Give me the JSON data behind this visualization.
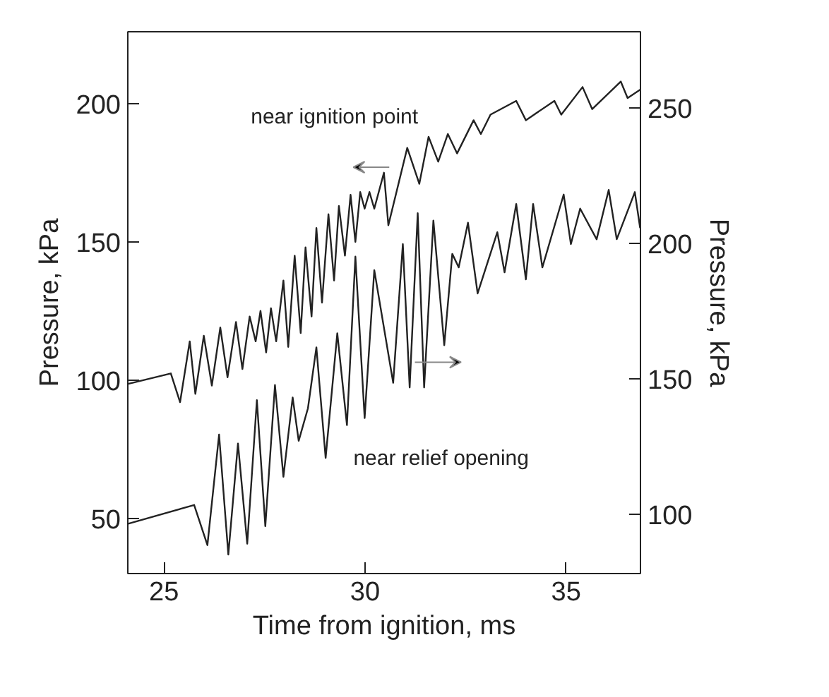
{
  "chart_data": {
    "type": "line",
    "xlabel": "Time from ignition, ms",
    "ylabel": "Pressure, kPa",
    "y2label": "Pressure, kPa",
    "xlim": [
      24.1,
      36.85
    ],
    "xticks": [
      25,
      30,
      35
    ],
    "ylim": [
      30,
      226
    ],
    "yticks": [
      50,
      100,
      150,
      200
    ],
    "y2lim": [
      78,
      278
    ],
    "y2ticks": [
      100,
      150,
      200,
      250
    ],
    "grid": false,
    "legend": false,
    "marker": "none",
    "line_style": "solid",
    "series": [
      {
        "name": "near ignition point",
        "color": "#222222",
        "x": [
          24.11,
          25.17,
          25.4,
          25.64,
          25.78,
          25.99,
          26.19,
          26.4,
          26.58,
          26.79,
          26.95,
          27.13,
          27.28,
          27.4,
          27.54,
          27.66,
          27.79,
          27.97,
          28.09,
          28.25,
          28.4,
          28.52,
          28.67,
          28.79,
          28.93,
          29.09,
          29.23,
          29.35,
          29.5,
          29.64,
          29.76,
          29.88,
          29.99,
          30.11,
          30.23,
          30.47,
          30.58,
          31.05,
          31.35,
          31.58,
          31.82,
          32.06,
          32.29,
          32.7,
          32.88,
          33.12,
          33.76,
          34.0,
          34.71,
          34.88,
          35.41,
          35.65,
          36.36,
          36.53,
          36.84
        ],
        "values": [
          98.6,
          102.4,
          92,
          114,
          95,
          116,
          98,
          119,
          101,
          121,
          104,
          123,
          114,
          125,
          110,
          126,
          114,
          136,
          112,
          145,
          117,
          148,
          123,
          155,
          128,
          160,
          136,
          163,
          145,
          167,
          150,
          168,
          162,
          168,
          162,
          175,
          156,
          184,
          171,
          188,
          179,
          189,
          182,
          194,
          189,
          196,
          201,
          194,
          201,
          196,
          206,
          198,
          208,
          202,
          205
        ]
      },
      {
        "name": "near relief opening",
        "color": "#222222",
        "axis": "y2",
        "x": [
          24.11,
          25.75,
          26.08,
          26.37,
          26.6,
          26.84,
          27.07,
          27.31,
          27.52,
          27.76,
          27.97,
          28.2,
          28.35,
          28.58,
          28.79,
          29.02,
          29.31,
          29.55,
          29.76,
          29.99,
          30.23,
          30.7,
          30.94,
          31.11,
          31.31,
          31.47,
          31.7,
          31.97,
          32.17,
          32.33,
          32.56,
          32.8,
          33.29,
          33.47,
          33.76,
          34.0,
          34.18,
          34.41,
          34.94,
          35.12,
          35.35,
          35.76,
          36.06,
          36.26,
          36.71,
          36.84
        ],
        "values": [
          96.4,
          103.3,
          88.5,
          129.3,
          85,
          126,
          89,
          142,
          95.5,
          147.6,
          113.7,
          143,
          127,
          139,
          161.5,
          120.7,
          166.7,
          132.8,
          195,
          135.4,
          190,
          148.4,
          199.6,
          146.7,
          211,
          146.7,
          208.3,
          162.3,
          196,
          191,
          207.5,
          181.4,
          204,
          189.2,
          214.4,
          186.6,
          214.4,
          191,
          217.9,
          199.6,
          212.7,
          201.4,
          219.6,
          201.4,
          218.8,
          205.7
        ]
      }
    ]
  }
}
